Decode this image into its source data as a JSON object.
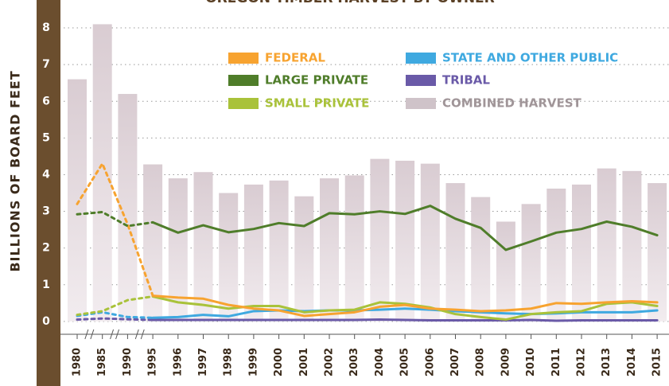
{
  "chart_data": {
    "type": "bar-line",
    "title": "OREGON TIMBER HARVEST BY OWNER",
    "y_label": "BILLIONS OF BOARD FEET",
    "categories": [
      "1980",
      "1985",
      "1990",
      "1995",
      "1996",
      "1997",
      "1998",
      "1999",
      "2000",
      "2001",
      "2002",
      "2003",
      "2004",
      "2005",
      "2006",
      "2007",
      "2008",
      "2009",
      "2010",
      "2011",
      "2012",
      "2013",
      "2014",
      "2015"
    ],
    "bar_series": {
      "name": "COMBINED HARVEST",
      "color": "#cfc3c9",
      "values": [
        6.6,
        8.1,
        6.2,
        4.28,
        3.9,
        4.07,
        3.5,
        3.73,
        3.84,
        3.41,
        3.9,
        3.98,
        4.43,
        4.38,
        4.3,
        3.77,
        3.39,
        2.72,
        3.2,
        3.62,
        3.73,
        4.17,
        4.1,
        3.77
      ]
    },
    "series": [
      {
        "name": "FEDERAL",
        "color": "#f7a330",
        "values": [
          3.2,
          4.3,
          2.65,
          0.7,
          0.65,
          0.62,
          0.45,
          0.35,
          0.3,
          0.15,
          0.2,
          0.25,
          0.4,
          0.45,
          0.35,
          0.32,
          0.28,
          0.3,
          0.35,
          0.5,
          0.48,
          0.52,
          0.55,
          0.52
        ]
      },
      {
        "name": "LARGE PRIVATE",
        "color": "#4f7d2a",
        "values": [
          2.92,
          2.98,
          2.6,
          2.7,
          2.42,
          2.62,
          2.43,
          2.52,
          2.68,
          2.6,
          2.95,
          2.92,
          3.0,
          2.93,
          3.15,
          2.8,
          2.55,
          1.95,
          2.18,
          2.42,
          2.52,
          2.72,
          2.58,
          2.35
        ]
      },
      {
        "name": "SMALL PRIVATE",
        "color": "#a9c23a",
        "values": [
          0.18,
          0.28,
          0.58,
          0.68,
          0.52,
          0.45,
          0.35,
          0.42,
          0.42,
          0.25,
          0.3,
          0.32,
          0.52,
          0.48,
          0.38,
          0.2,
          0.12,
          0.05,
          0.2,
          0.25,
          0.28,
          0.48,
          0.52,
          0.42
        ]
      },
      {
        "name": "STATE AND OTHER PUBLIC",
        "color": "#3fa9e0",
        "values": [
          0.15,
          0.25,
          0.12,
          0.1,
          0.12,
          0.18,
          0.14,
          0.28,
          0.3,
          0.28,
          0.3,
          0.3,
          0.32,
          0.35,
          0.32,
          0.28,
          0.25,
          0.22,
          0.2,
          0.22,
          0.25,
          0.25,
          0.25,
          0.3
        ]
      },
      {
        "name": "TRIBAL",
        "color": "#6a5aa8",
        "values": [
          0.05,
          0.08,
          0.06,
          0.04,
          0.04,
          0.04,
          0.04,
          0.04,
          0.04,
          0.04,
          0.04,
          0.04,
          0.05,
          0.04,
          0.03,
          0.03,
          0.03,
          0.03,
          0.04,
          0.02,
          0.03,
          0.03,
          0.03,
          0.03
        ]
      }
    ],
    "ylim": [
      -0.35,
      8.5
    ],
    "yticks": [
      0,
      1,
      2,
      3,
      4,
      5,
      6,
      7,
      8
    ],
    "grid": true
  }
}
